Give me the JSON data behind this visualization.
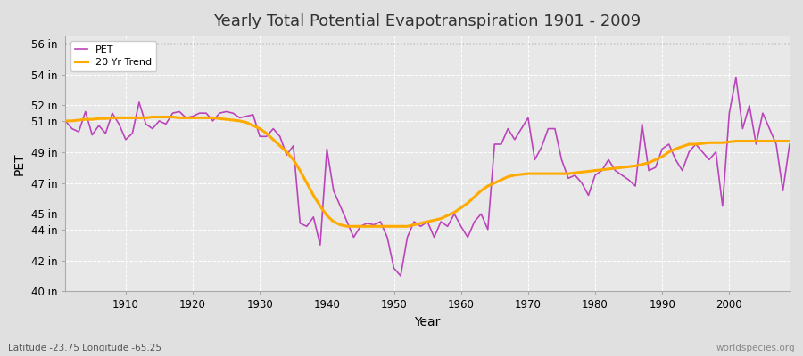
{
  "title": "Yearly Total Potential Evapotranspiration 1901 - 2009",
  "xlabel": "Year",
  "ylabel": "PET",
  "lat_lon_label": "Latitude -23.75 Longitude -65.25",
  "watermark": "worldspecies.org",
  "ylim": [
    40,
    56.5
  ],
  "ytick_labels": [
    "40 in",
    "42 in",
    "44 in",
    "45 in",
    "47 in",
    "49 in",
    "51 in",
    "52 in",
    "54 in",
    "56 in"
  ],
  "ytick_values": [
    40,
    42,
    44,
    45,
    47,
    49,
    51,
    52,
    54,
    56
  ],
  "pet_color": "#bb44bb",
  "trend_color": "#ffaa00",
  "bg_color": "#e8e8e8",
  "plot_bg_color": "#e8e8e8",
  "years": [
    1901,
    1902,
    1903,
    1904,
    1905,
    1906,
    1907,
    1908,
    1909,
    1910,
    1911,
    1912,
    1913,
    1914,
    1915,
    1916,
    1917,
    1918,
    1919,
    1920,
    1921,
    1922,
    1923,
    1924,
    1925,
    1926,
    1927,
    1928,
    1929,
    1930,
    1931,
    1932,
    1933,
    1934,
    1935,
    1936,
    1937,
    1938,
    1939,
    1940,
    1941,
    1942,
    1943,
    1944,
    1945,
    1946,
    1947,
    1948,
    1949,
    1950,
    1951,
    1952,
    1953,
    1954,
    1955,
    1956,
    1957,
    1958,
    1959,
    1960,
    1961,
    1962,
    1963,
    1964,
    1965,
    1966,
    1967,
    1968,
    1969,
    1970,
    1971,
    1972,
    1973,
    1974,
    1975,
    1976,
    1977,
    1978,
    1979,
    1980,
    1981,
    1982,
    1983,
    1984,
    1985,
    1986,
    1987,
    1988,
    1989,
    1990,
    1991,
    1992,
    1993,
    1994,
    1995,
    1996,
    1997,
    1998,
    1999,
    2000,
    2001,
    2002,
    2003,
    2004,
    2005,
    2006,
    2007,
    2008,
    2009
  ],
  "pet_values": [
    51.0,
    50.5,
    50.3,
    51.6,
    50.1,
    50.7,
    50.2,
    51.5,
    50.8,
    49.8,
    50.2,
    52.2,
    50.8,
    50.5,
    51.0,
    50.8,
    51.5,
    51.6,
    51.2,
    51.3,
    51.5,
    51.5,
    51.0,
    51.5,
    51.6,
    51.5,
    51.2,
    51.3,
    51.4,
    50.0,
    50.0,
    50.5,
    50.0,
    48.8,
    49.4,
    44.4,
    44.2,
    44.8,
    43.0,
    49.2,
    46.5,
    45.5,
    44.5,
    43.5,
    44.2,
    44.4,
    44.3,
    44.5,
    43.5,
    41.5,
    41.0,
    43.5,
    44.5,
    44.2,
    44.5,
    43.5,
    44.5,
    44.2,
    45.0,
    44.2,
    43.5,
    44.5,
    45.0,
    44.0,
    49.5,
    49.5,
    50.5,
    49.8,
    50.5,
    51.2,
    48.5,
    49.3,
    50.5,
    50.5,
    48.5,
    47.3,
    47.5,
    47.0,
    46.2,
    47.5,
    47.8,
    48.5,
    47.8,
    47.5,
    47.2,
    46.8,
    50.8,
    47.8,
    48.0,
    49.2,
    49.5,
    48.5,
    47.8,
    49.0,
    49.5,
    49.0,
    48.5,
    49.0,
    45.5,
    51.5,
    53.8,
    50.5,
    52.0,
    49.5,
    51.5,
    50.5,
    49.5,
    46.5,
    49.5
  ],
  "trend_values": [
    51.0,
    51.0,
    51.05,
    51.1,
    51.1,
    51.15,
    51.15,
    51.2,
    51.2,
    51.2,
    51.2,
    51.2,
    51.2,
    51.25,
    51.25,
    51.25,
    51.25,
    51.2,
    51.2,
    51.2,
    51.2,
    51.2,
    51.2,
    51.15,
    51.1,
    51.05,
    51.0,
    50.9,
    50.7,
    50.5,
    50.2,
    49.8,
    49.4,
    49.0,
    48.5,
    47.8,
    47.0,
    46.2,
    45.5,
    44.9,
    44.5,
    44.3,
    44.2,
    44.2,
    44.2,
    44.2,
    44.2,
    44.2,
    44.2,
    44.2,
    44.2,
    44.2,
    44.3,
    44.4,
    44.5,
    44.6,
    44.7,
    44.9,
    45.1,
    45.4,
    45.7,
    46.1,
    46.5,
    46.8,
    47.0,
    47.2,
    47.4,
    47.5,
    47.55,
    47.6,
    47.6,
    47.6,
    47.6,
    47.6,
    47.6,
    47.6,
    47.65,
    47.7,
    47.75,
    47.8,
    47.85,
    47.9,
    47.95,
    48.0,
    48.05,
    48.1,
    48.2,
    48.3,
    48.5,
    48.7,
    49.0,
    49.2,
    49.35,
    49.5,
    49.5,
    49.55,
    49.6,
    49.6,
    49.6,
    49.65,
    49.7,
    49.7,
    49.7,
    49.7,
    49.7,
    49.7,
    49.7,
    49.7,
    49.7
  ]
}
